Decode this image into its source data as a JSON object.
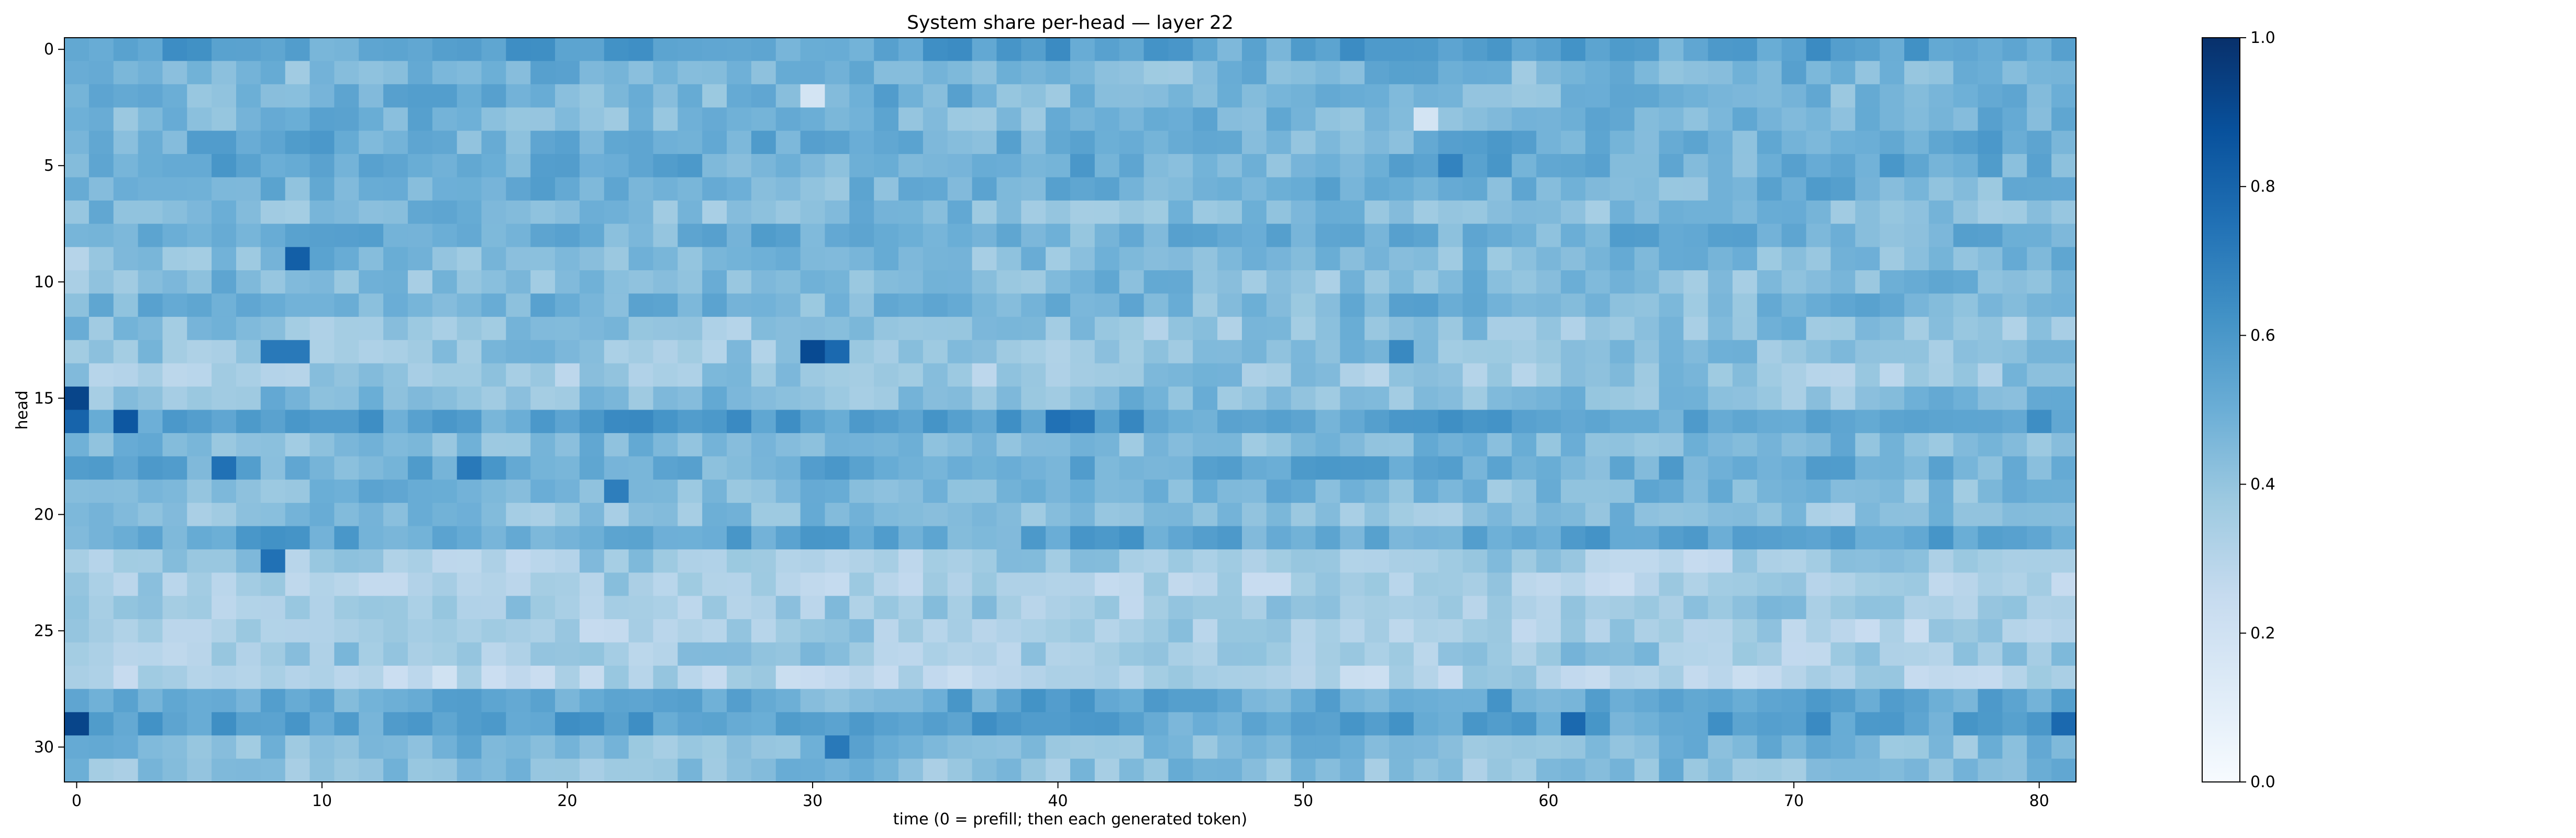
{
  "chart_data": {
    "type": "heatmap",
    "title": "System share per-head — layer 22",
    "xlabel": "time (0 = prefill; then each generated token)",
    "ylabel": "head",
    "x_range": [
      0,
      81
    ],
    "y_range": [
      0,
      31
    ],
    "xticks": [
      0,
      10,
      20,
      30,
      40,
      50,
      60,
      70,
      80
    ],
    "yticks": [
      0,
      5,
      10,
      15,
      20,
      25,
      30
    ],
    "n_cols": 82,
    "n_rows": 32,
    "colormap": "Blues",
    "color_range": [
      0.0,
      1.0
    ],
    "colorbar_ticks": [
      0.0,
      0.2,
      0.4,
      0.6,
      0.8,
      1.0
    ],
    "colorbar_tick_labels": [
      "0.0",
      "0.2",
      "0.4",
      "0.6",
      "0.8",
      "1.0"
    ],
    "colors": {
      "low": "#f7fbff",
      "mid": "#6baed6",
      "high": "#08306b"
    },
    "row_means": [
      0.56,
      0.47,
      0.48,
      0.47,
      0.5,
      0.5,
      0.48,
      0.44,
      0.5,
      0.45,
      0.44,
      0.47,
      0.41,
      0.4,
      0.38,
      0.43,
      0.57,
      0.44,
      0.52,
      0.46,
      0.42,
      0.53,
      0.35,
      0.33,
      0.36,
      0.34,
      0.37,
      0.3,
      0.52,
      0.56,
      0.45,
      0.42
    ],
    "notable_cells": [
      {
        "head": 9,
        "time": 9,
        "value": 0.82
      },
      {
        "head": 13,
        "time": 8,
        "value": 0.72
      },
      {
        "head": 13,
        "time": 9,
        "value": 0.72
      },
      {
        "head": 13,
        "time": 30,
        "value": 0.9
      },
      {
        "head": 13,
        "time": 31,
        "value": 0.78
      },
      {
        "head": 13,
        "time": 54,
        "value": 0.66
      },
      {
        "head": 15,
        "time": 0,
        "value": 0.92
      },
      {
        "head": 16,
        "time": 0,
        "value": 0.8
      },
      {
        "head": 16,
        "time": 2,
        "value": 0.85
      },
      {
        "head": 16,
        "time": 40,
        "value": 0.75
      },
      {
        "head": 16,
        "time": 41,
        "value": 0.72
      },
      {
        "head": 18,
        "time": 6,
        "value": 0.75
      },
      {
        "head": 18,
        "time": 16,
        "value": 0.72
      },
      {
        "head": 19,
        "time": 22,
        "value": 0.7
      },
      {
        "head": 22,
        "time": 8,
        "value": 0.75
      },
      {
        "head": 29,
        "time": 0,
        "value": 0.92
      },
      {
        "head": 29,
        "time": 61,
        "value": 0.78
      },
      {
        "head": 29,
        "time": 81,
        "value": 0.78
      },
      {
        "head": 30,
        "time": 31,
        "value": 0.72
      },
      {
        "head": 2,
        "time": 30,
        "value": 0.18
      },
      {
        "head": 3,
        "time": 55,
        "value": 0.18
      },
      {
        "head": 5,
        "time": 56,
        "value": 0.68
      },
      {
        "head": 9,
        "time": 0,
        "value": 0.3
      }
    ]
  }
}
